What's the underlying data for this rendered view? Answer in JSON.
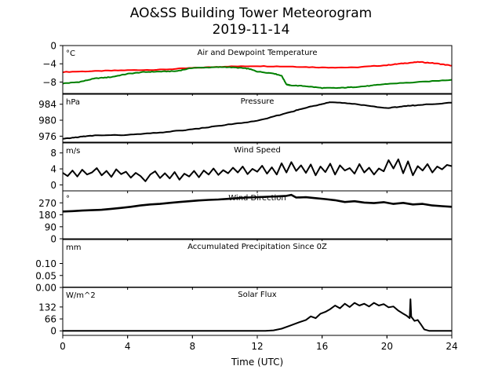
{
  "title": "AO&SS Building Tower Meteorogram",
  "subtitle": "2019-11-14",
  "colors": {
    "temperature": "#ff0000",
    "dewpoint": "#008000",
    "line": "#000000"
  },
  "chart_data": {
    "type": "line",
    "x_axis": {
      "label": "Time (UTC)",
      "range": [
        0,
        24
      ],
      "ticks": [
        0,
        4,
        8,
        12,
        16,
        20,
        24
      ],
      "tick_labels": [
        "0",
        "4",
        "8",
        "12",
        "16",
        "20",
        "24"
      ]
    },
    "panels": [
      {
        "title": "Air and Dewpoint Temperature",
        "unit": "°C",
        "ylim": [
          -10.5,
          0
        ],
        "yticks": [
          0,
          -4,
          -8
        ],
        "ytick_labels": [
          "0",
          "−4",
          "−8"
        ],
        "series": [
          {
            "color": "#ff0000",
            "width": 2,
            "smooth": true,
            "x": [
              0,
              2,
              4,
              6,
              8,
              10,
              12,
              14,
              16,
              18,
              20,
              21,
              22,
              23,
              24
            ],
            "y": [
              -5.8,
              -5.6,
              -5.4,
              -5.3,
              -4.9,
              -4.6,
              -4.5,
              -4.6,
              -4.8,
              -4.8,
              -4.3,
              -3.9,
              -3.6,
              -3.9,
              -4.4
            ]
          },
          {
            "color": "#008000",
            "width": 2,
            "smooth": true,
            "x": [
              0,
              1,
              2,
              3,
              4,
              5,
              6,
              7,
              8,
              9,
              10,
              11,
              11.5,
              12,
              13,
              13.5,
              13.8,
              14,
              15,
              16,
              17,
              18,
              19,
              20,
              22,
              24
            ],
            "y": [
              -8.3,
              -8.0,
              -7.2,
              -6.9,
              -6.2,
              -5.8,
              -5.7,
              -5.6,
              -4.9,
              -4.8,
              -4.7,
              -4.9,
              -5.1,
              -5.7,
              -6.1,
              -6.6,
              -8.5,
              -8.7,
              -8.9,
              -9.3,
              -9.3,
              -9.1,
              -8.8,
              -8.4,
              -8.0,
              -7.5
            ]
          }
        ]
      },
      {
        "title": "Pressure",
        "unit": "hPa",
        "ylim": [
          974.5,
          986.5
        ],
        "yticks": [
          984,
          980,
          976
        ],
        "ytick_labels": [
          "984",
          "980",
          "976"
        ],
        "series": [
          {
            "color": "#000000",
            "width": 2,
            "smooth": true,
            "x": [
              0,
              1,
              2,
              4,
              6,
              8,
              10,
              12,
              14,
              15,
              16,
              16.5,
              18,
              20,
              21,
              22,
              24
            ],
            "y": [
              975.3,
              975.8,
              976.2,
              976.3,
              976.9,
              977.7,
              978.8,
              979.8,
              982.0,
              983.1,
              984.1,
              984.5,
              984.1,
              983.0,
              983.5,
              983.8,
              984.4
            ]
          }
        ]
      },
      {
        "title": "Wind Speed",
        "unit": "m/s",
        "ylim": [
          -1.5,
          10.5
        ],
        "yticks": [
          8,
          4,
          0
        ],
        "ytick_labels": [
          "8",
          "4",
          "0"
        ],
        "series": [
          {
            "color": "#000000",
            "width": 2,
            "smooth": false,
            "x": [
              0,
              0.3,
              0.6,
              0.9,
              1.2,
              1.5,
              1.8,
              2.1,
              2.4,
              2.7,
              3.0,
              3.3,
              3.6,
              3.9,
              4.2,
              4.5,
              4.8,
              5.1,
              5.4,
              5.7,
              6.0,
              6.3,
              6.6,
              6.9,
              7.2,
              7.5,
              7.8,
              8.1,
              8.4,
              8.7,
              9.0,
              9.3,
              9.6,
              9.9,
              10.2,
              10.5,
              10.8,
              11.1,
              11.4,
              11.7,
              12.0,
              12.3,
              12.6,
              12.9,
              13.2,
              13.5,
              13.8,
              14.1,
              14.4,
              14.7,
              15.0,
              15.3,
              15.6,
              15.9,
              16.2,
              16.5,
              16.8,
              17.1,
              17.4,
              17.7,
              18.0,
              18.3,
              18.6,
              18.9,
              19.2,
              19.5,
              19.8,
              20.1,
              20.4,
              20.7,
              21.0,
              21.3,
              21.6,
              21.9,
              22.2,
              22.5,
              22.8,
              23.1,
              23.4,
              23.7,
              24.0
            ],
            "y": [
              3.0,
              2.2,
              3.6,
              2.1,
              3.8,
              2.6,
              3.1,
              4.2,
              2.4,
              3.5,
              2.0,
              3.9,
              2.7,
              3.3,
              1.8,
              3.0,
              2.2,
              0.9,
              2.6,
              3.4,
              1.7,
              2.9,
              1.6,
              3.2,
              1.3,
              2.8,
              2.1,
              3.5,
              1.9,
              3.6,
              2.6,
              4.1,
              2.5,
              3.7,
              2.9,
              4.3,
              3.1,
              4.6,
              2.7,
              4.0,
              3.3,
              4.8,
              2.8,
              4.4,
              2.6,
              5.4,
              3.1,
              5.7,
              3.5,
              4.9,
              3.0,
              5.1,
              2.4,
              4.6,
              3.2,
              5.3,
              2.6,
              4.9,
              3.6,
              4.2,
              2.8,
              5.2,
              3.1,
              4.3,
              2.6,
              4.1,
              3.4,
              6.2,
              4.1,
              6.4,
              2.9,
              5.9,
              2.4,
              4.7,
              3.6,
              5.2,
              3.1,
              4.6,
              3.9,
              5.0,
              4.7
            ]
          }
        ]
      },
      {
        "title": "Wind Direction",
        "unit": "°",
        "ylim": [
          0,
          360
        ],
        "yticks": [
          270,
          180,
          90,
          0
        ],
        "ytick_labels": [
          "270",
          "180",
          "90",
          "0"
        ],
        "series": [
          {
            "color": "#000000",
            "width": 2.6,
            "smooth": false,
            "x": [
              0,
              0.6,
              1.2,
              1.8,
              2.4,
              3.0,
              3.6,
              4.2,
              4.8,
              5.4,
              6.0,
              6.6,
              7.2,
              7.8,
              8.4,
              9.0,
              9.6,
              10.2,
              10.8,
              11.4,
              12.0,
              12.6,
              13.2,
              13.8,
              14.1,
              14.4,
              15.0,
              15.6,
              16.2,
              16.8,
              17.4,
              18.0,
              18.6,
              19.2,
              19.8,
              20.4,
              21.0,
              21.6,
              22.2,
              22.8,
              23.4,
              24.0
            ],
            "y": [
              205,
              208,
              212,
              215,
              218,
              225,
              232,
              240,
              250,
              258,
              262,
              270,
              276,
              282,
              288,
              292,
              295,
              300,
              305,
              310,
              312,
              316,
              318,
              322,
              330,
              310,
              312,
              305,
              298,
              290,
              276,
              282,
              272,
              268,
              275,
              262,
              270,
              258,
              262,
              250,
              245,
              240
            ]
          }
        ]
      },
      {
        "title": "Accumulated Precipitation Since 0Z",
        "unit": "mm",
        "ylim": [
          0,
          0.2
        ],
        "yticks": [
          0.1,
          0.05,
          0.0
        ],
        "ytick_labels": [
          "0.10",
          "0.05",
          "0.00"
        ],
        "series": [
          {
            "color": "#000000",
            "width": 2,
            "smooth": false,
            "x": [
              0,
              24
            ],
            "y": [
              0,
              0
            ]
          }
        ]
      },
      {
        "title": "Solar Flux",
        "unit": "W/m^2",
        "ylim": [
          -25,
          240
        ],
        "yticks": [
          132,
          66,
          0
        ],
        "ytick_labels": [
          "132",
          "66",
          "0"
        ],
        "series": [
          {
            "color": "#000000",
            "width": 2,
            "smooth": false,
            "x": [
              0,
              12.5,
              13.0,
              13.5,
              14.0,
              14.5,
              15.0,
              15.3,
              15.6,
              15.9,
              16.2,
              16.5,
              16.8,
              17.1,
              17.4,
              17.7,
              18.0,
              18.3,
              18.6,
              18.9,
              19.2,
              19.5,
              19.8,
              20.1,
              20.4,
              20.7,
              21.0,
              21.2,
              21.4,
              21.45,
              21.5,
              21.7,
              21.9,
              22.1,
              22.3,
              22.6,
              24.0
            ],
            "y": [
              0,
              0,
              3,
              12,
              28,
              45,
              60,
              80,
              70,
              95,
              105,
              120,
              140,
              125,
              150,
              132,
              155,
              140,
              150,
              135,
              155,
              140,
              148,
              130,
              135,
              112,
              95,
              85,
              70,
              175,
              78,
              55,
              60,
              35,
              8,
              0,
              0
            ]
          }
        ]
      }
    ]
  }
}
